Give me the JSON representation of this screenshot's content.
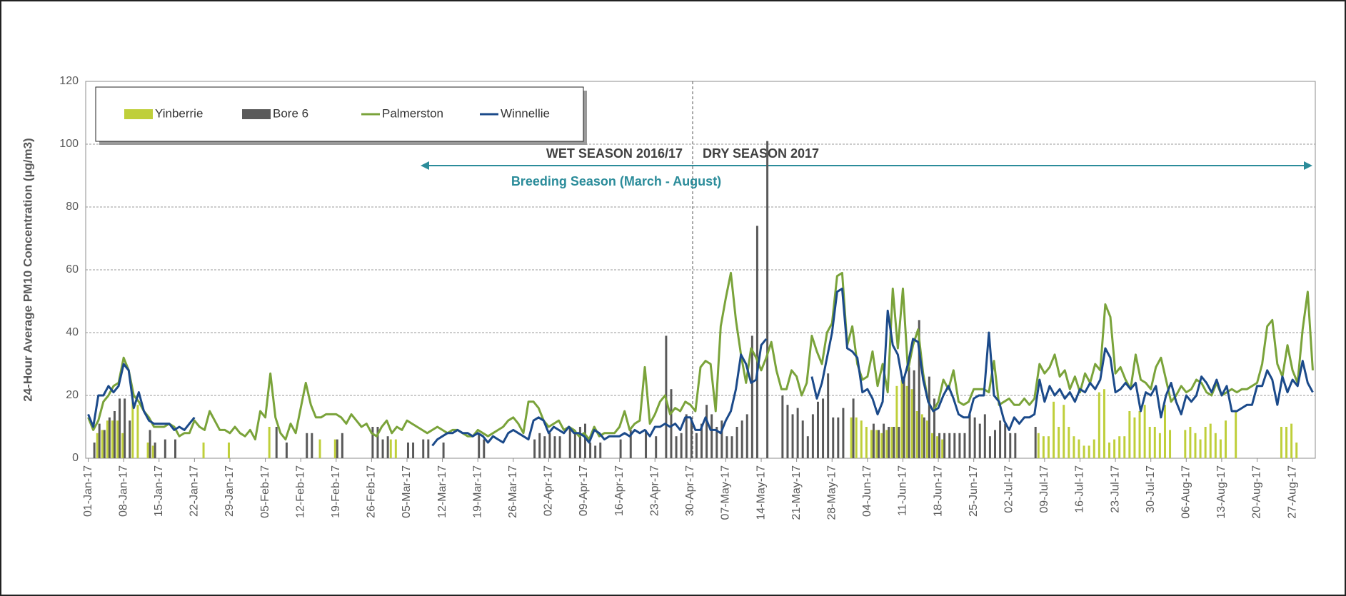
{
  "chart_data": {
    "type": "combo",
    "y_label": "24-Hour Average PM10 Concentration (µg/m3)",
    "ylim": [
      0,
      120
    ],
    "yticks": [
      0,
      20,
      40,
      60,
      80,
      100,
      120
    ],
    "grid": true,
    "annotations": [
      "WET SEASON 2016/17",
      "DRY SEASON 2017",
      "Breeding Season (March - August)"
    ],
    "legend_position": "top-left",
    "categories": [
      "01-Jan-17",
      null,
      null,
      null,
      null,
      null,
      null,
      "08-Jan-17",
      null,
      null,
      null,
      null,
      null,
      null,
      "15-Jan-17",
      null,
      null,
      null,
      null,
      null,
      null,
      "22-Jan-17",
      null,
      null,
      null,
      null,
      null,
      null,
      "29-Jan-17",
      null,
      null,
      null,
      null,
      null,
      null,
      "05-Feb-17",
      null,
      null,
      null,
      null,
      null,
      null,
      "12-Feb-17",
      null,
      null,
      null,
      null,
      null,
      null,
      "19-Feb-17",
      null,
      null,
      null,
      null,
      null,
      null,
      "26-Feb-17",
      null,
      null,
      null,
      null,
      null,
      null,
      "05-Mar-17",
      null,
      null,
      null,
      null,
      null,
      null,
      "12-Mar-17",
      null,
      null,
      null,
      null,
      null,
      null,
      "19-Mar-17",
      null,
      null,
      null,
      null,
      null,
      null,
      "26-Mar-17",
      null,
      null,
      null,
      null,
      null,
      null,
      "02-Apr-17",
      null,
      null,
      null,
      null,
      null,
      null,
      "09-Apr-17",
      null,
      null,
      null,
      null,
      null,
      null,
      "16-Apr-17",
      null,
      null,
      null,
      null,
      null,
      null,
      "23-Apr-17",
      null,
      null,
      null,
      null,
      null,
      null,
      "30-Apr-17",
      null,
      null,
      null,
      null,
      null,
      null,
      "07-May-17",
      null,
      null,
      null,
      null,
      null,
      null,
      "14-May-17",
      null,
      null,
      null,
      null,
      null,
      null,
      "21-May-17",
      null,
      null,
      null,
      null,
      null,
      null,
      "28-May-17",
      null,
      null,
      null,
      null,
      null,
      null,
      "04-Jun-17",
      null,
      null,
      null,
      null,
      null,
      null,
      "11-Jun-17",
      null,
      null,
      null,
      null,
      null,
      null,
      "18-Jun-17",
      null,
      null,
      null,
      null,
      null,
      null,
      "25-Jun-17",
      null,
      null,
      null,
      null,
      null,
      null,
      "02-Jul-17",
      null,
      null,
      null,
      null,
      null,
      null,
      "09-Jul-17",
      null,
      null,
      null,
      null,
      null,
      null,
      "16-Jul-17",
      null,
      null,
      null,
      null,
      null,
      null,
      "23-Jul-17",
      null,
      null,
      null,
      null,
      null,
      null,
      "30-Jul-17",
      null,
      null,
      null,
      null,
      null,
      null,
      "06-Aug-17",
      null,
      null,
      null,
      null,
      null,
      null,
      "13-Aug-17",
      null,
      null,
      null,
      null,
      null,
      null,
      "20-Aug-17",
      null,
      null,
      null,
      null,
      null,
      null,
      "27-Aug-17",
      null,
      null,
      null,
      null
    ],
    "series": [
      {
        "name": "Yinberrie",
        "type": "bar",
        "color": "#bfcf3a",
        "values": [
          null,
          null,
          8,
          9,
          12,
          12,
          12,
          8,
          null,
          21,
          17,
          null,
          5,
          4,
          null,
          null,
          null,
          null,
          null,
          null,
          null,
          null,
          null,
          5,
          null,
          null,
          null,
          null,
          5,
          null,
          null,
          null,
          null,
          null,
          null,
          null,
          10,
          null,
          null,
          null,
          null,
          null,
          null,
          null,
          null,
          null,
          6,
          null,
          null,
          6,
          null,
          null,
          null,
          null,
          null,
          null,
          null,
          null,
          null,
          null,
          6,
          6,
          null,
          null,
          null,
          null,
          null,
          null,
          null,
          null,
          null,
          null,
          null,
          null,
          null,
          null,
          null,
          null,
          null,
          null,
          null,
          null,
          null,
          null,
          null,
          null,
          null,
          null,
          null,
          null,
          null,
          null,
          null,
          null,
          null,
          null,
          null,
          null,
          null,
          null,
          null,
          null,
          null,
          null,
          null,
          null,
          null,
          null,
          null,
          null,
          null,
          null,
          null,
          null,
          null,
          null,
          null,
          null,
          null,
          null,
          null,
          null,
          null,
          null,
          null,
          null,
          null,
          null,
          null,
          null,
          null,
          null,
          null,
          null,
          null,
          null,
          null,
          null,
          null,
          null,
          null,
          null,
          null,
          null,
          null,
          null,
          null,
          null,
          null,
          null,
          null,
          13,
          13,
          12,
          10,
          9,
          9,
          8,
          9,
          10,
          23,
          25,
          23,
          22,
          15,
          14,
          12,
          8,
          7,
          6,
          null,
          null,
          null,
          null,
          null,
          null,
          null,
          null,
          null,
          null,
          null,
          null,
          null,
          null,
          null,
          null,
          null,
          null,
          8,
          7,
          7,
          18,
          10,
          17,
          10,
          7,
          6,
          4,
          4,
          6,
          21,
          22,
          5,
          6,
          7,
          7,
          15,
          13,
          15,
          17,
          10,
          10,
          8,
          17,
          9,
          null,
          null,
          9,
          10,
          8,
          6,
          10,
          11,
          8,
          6,
          12,
          null,
          15,
          null,
          null,
          null,
          null,
          null,
          null,
          null,
          null,
          10,
          10,
          11,
          5,
          null,
          null,
          null
        ]
      },
      {
        "name": "Bore 6",
        "type": "bar",
        "color": "#595959",
        "values": [
          null,
          5,
          11,
          9,
          13,
          15,
          19,
          19,
          12,
          null,
          null,
          null,
          9,
          5,
          null,
          6,
          null,
          6,
          null,
          null,
          null,
          null,
          null,
          null,
          null,
          null,
          null,
          null,
          null,
          null,
          null,
          null,
          null,
          null,
          null,
          null,
          null,
          10,
          null,
          5,
          null,
          null,
          null,
          8,
          8,
          null,
          null,
          null,
          null,
          6,
          8,
          null,
          null,
          null,
          null,
          null,
          10,
          10,
          6,
          7,
          null,
          null,
          null,
          5,
          5,
          null,
          6,
          6,
          null,
          null,
          5,
          null,
          null,
          null,
          null,
          null,
          null,
          8,
          6,
          null,
          null,
          null,
          null,
          null,
          null,
          null,
          null,
          null,
          6,
          8,
          7,
          8,
          7,
          7,
          null,
          10,
          9,
          10,
          11,
          5,
          4,
          5,
          null,
          null,
          null,
          6,
          null,
          9,
          null,
          null,
          9,
          null,
          7,
          null,
          39,
          22,
          7,
          8,
          14,
          13,
          8,
          11,
          17,
          14,
          10,
          12,
          7,
          7,
          10,
          12,
          14,
          39,
          74,
          null,
          101,
          null,
          null,
          20,
          17,
          14,
          16,
          12,
          7,
          14,
          18,
          19,
          27,
          13,
          13,
          16,
          null,
          19,
          null,
          null,
          null,
          11,
          9,
          11,
          10,
          10,
          10,
          26,
          29,
          28,
          44,
          13,
          26,
          19,
          8,
          8,
          8,
          8,
          8,
          8,
          14,
          13,
          11,
          14,
          7,
          9,
          12,
          11,
          8,
          8,
          null,
          null,
          null,
          10,
          null,
          null,
          null,
          null,
          null,
          null,
          null,
          null,
          null,
          null,
          null,
          null,
          null,
          null,
          null,
          null,
          null,
          null,
          null,
          null,
          null,
          null,
          null,
          null,
          null,
          null,
          null,
          null,
          null,
          null,
          null,
          null,
          null,
          null,
          null,
          null,
          null,
          null,
          null,
          null,
          null,
          null,
          null,
          null,
          null,
          null,
          null,
          null,
          null,
          null,
          null,
          null,
          null,
          null,
          null
        ]
      },
      {
        "name": "Palmerston",
        "type": "line",
        "color": "#7aa33a",
        "values": [
          13,
          9,
          12,
          18,
          20,
          23,
          24,
          32,
          28,
          20,
          18,
          15,
          13,
          10,
          10,
          10,
          11,
          10,
          7,
          8,
          8,
          12,
          10,
          9,
          15,
          12,
          9,
          9,
          8,
          10,
          8,
          7,
          9,
          6,
          15,
          13,
          27,
          13,
          8,
          6,
          11,
          8,
          16,
          24,
          17,
          13,
          13,
          14,
          14,
          14,
          13,
          11,
          14,
          12,
          10,
          11,
          8,
          7,
          10,
          12,
          8,
          10,
          9,
          12,
          11,
          10,
          9,
          8,
          9,
          10,
          9,
          8,
          9,
          9,
          8,
          7,
          7,
          9,
          8,
          7,
          8,
          9,
          10,
          12,
          13,
          11,
          8,
          18,
          18,
          16,
          12,
          10,
          11,
          12,
          9,
          10,
          9,
          7,
          8,
          6,
          10,
          7,
          8,
          8,
          8,
          10,
          15,
          9,
          11,
          12,
          29,
          11,
          14,
          18,
          20,
          14,
          16,
          15,
          18,
          17,
          15,
          29,
          31,
          30,
          15,
          42,
          51,
          59,
          44,
          33,
          24,
          35,
          32,
          28,
          32,
          37,
          28,
          22,
          22,
          28,
          26,
          20,
          24,
          39,
          34,
          30,
          40,
          43,
          58,
          59,
          36,
          42,
          30,
          25,
          26,
          34,
          23,
          30,
          21,
          54,
          35,
          54,
          28,
          36,
          41,
          27,
          18,
          15,
          18,
          25,
          22,
          28,
          18,
          17,
          18,
          22,
          22,
          22,
          21,
          31,
          17,
          18,
          19,
          17,
          17,
          19,
          17,
          19,
          30,
          27,
          29,
          33,
          26,
          28,
          22,
          26,
          21,
          27,
          24,
          30,
          28,
          49,
          45,
          27,
          29,
          25,
          22,
          33,
          25,
          24,
          22,
          29,
          32,
          25,
          18,
          20,
          23,
          21,
          22,
          25,
          24,
          21,
          20,
          24,
          20,
          21,
          22,
          21,
          22,
          22,
          23,
          24,
          30,
          42,
          44,
          30,
          26,
          36,
          28,
          24,
          41,
          53,
          28
        ]
      },
      {
        "name": "Winnellie",
        "type": "line",
        "color": "#1b4a8a",
        "values": [
          14,
          10,
          20,
          20,
          23,
          21,
          23,
          30,
          28,
          16,
          21,
          15,
          12,
          11,
          11,
          11,
          11,
          9,
          10,
          9,
          11,
          13,
          null,
          null,
          null,
          null,
          null,
          null,
          null,
          null,
          null,
          null,
          null,
          null,
          null,
          null,
          null,
          null,
          null,
          null,
          null,
          null,
          null,
          null,
          null,
          null,
          null,
          null,
          null,
          null,
          null,
          null,
          null,
          null,
          null,
          null,
          null,
          null,
          null,
          null,
          null,
          null,
          null,
          null,
          null,
          null,
          null,
          null,
          4,
          6,
          7,
          8,
          8,
          9,
          8,
          8,
          7,
          8,
          7,
          5,
          7,
          6,
          5,
          8,
          9,
          8,
          7,
          6,
          12,
          13,
          12,
          8,
          10,
          9,
          8,
          10,
          8,
          8,
          7,
          5,
          9,
          8,
          6,
          7,
          7,
          7,
          8,
          7,
          9,
          8,
          9,
          7,
          10,
          10,
          11,
          10,
          11,
          9,
          13,
          13,
          9,
          9,
          13,
          9,
          9,
          8,
          12,
          15,
          22,
          33,
          30,
          24,
          25,
          36,
          38,
          null,
          null,
          null,
          null,
          null,
          null,
          null,
          null,
          26,
          19,
          24,
          32,
          40,
          53,
          54,
          35,
          34,
          32,
          21,
          22,
          19,
          14,
          18,
          47,
          36,
          33,
          24,
          30,
          38,
          37,
          25,
          18,
          15,
          16,
          20,
          23,
          19,
          14,
          13,
          13,
          19,
          20,
          20,
          40,
          20,
          18,
          12,
          9,
          13,
          11,
          13,
          13,
          14,
          25,
          18,
          23,
          20,
          22,
          19,
          21,
          18,
          22,
          21,
          24,
          22,
          25,
          35,
          32,
          21,
          22,
          24,
          22,
          24,
          15,
          21,
          20,
          23,
          13,
          20,
          24,
          18,
          14,
          20,
          18,
          20,
          26,
          24,
          21,
          25,
          20,
          23,
          15,
          15,
          16,
          17,
          17,
          23,
          23,
          28,
          25,
          17,
          26,
          21,
          25,
          23,
          31,
          24,
          21
        ]
      }
    ]
  }
}
